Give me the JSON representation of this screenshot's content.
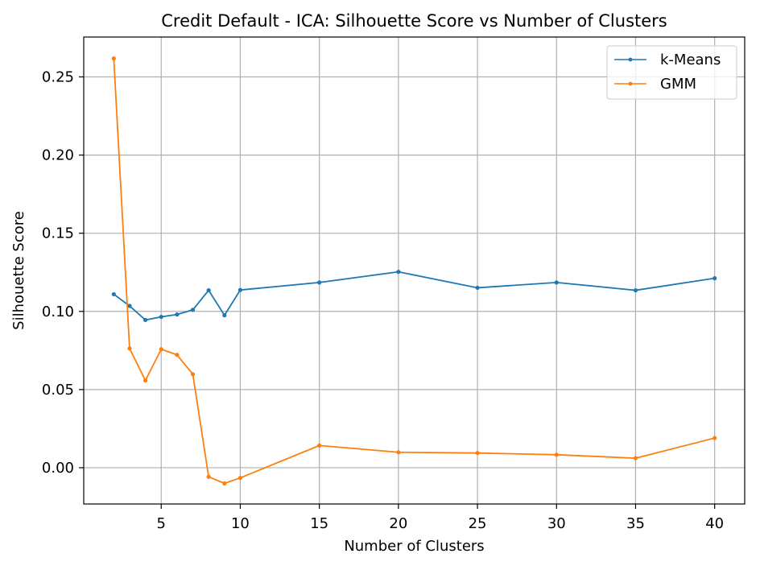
{
  "chart_data": {
    "type": "line",
    "title": "Credit Default - ICA: Silhouette Score vs Number of Clusters",
    "xlabel": "Number of Clusters",
    "ylabel": "Silhouette Score",
    "xlim": [
      0.1,
      41.9
    ],
    "ylim": [
      -0.0232,
      0.2755
    ],
    "x_ticks": [
      5,
      10,
      15,
      20,
      25,
      30,
      35,
      40
    ],
    "y_ticks": [
      0.0,
      0.05,
      0.1,
      0.15,
      0.2,
      0.25
    ],
    "x_tick_labels": [
      "5",
      "10",
      "15",
      "20",
      "25",
      "30",
      "35",
      "40"
    ],
    "y_tick_labels": [
      "0.00",
      "0.05",
      "0.10",
      "0.15",
      "0.20",
      "0.25"
    ],
    "grid": true,
    "legend_position": "top-right",
    "x": [
      2,
      3,
      4,
      5,
      6,
      7,
      8,
      9,
      10,
      15,
      20,
      25,
      30,
      35,
      40
    ],
    "series": [
      {
        "name": "k-Means",
        "color": "#1f77b4",
        "values": [
          0.111,
          0.1035,
          0.0945,
          0.0965,
          0.098,
          0.101,
          0.1135,
          0.0975,
          0.1137,
          0.1185,
          0.1253,
          0.1151,
          0.1185,
          0.1135,
          0.1212
        ]
      },
      {
        "name": "GMM",
        "color": "#ff7f0e",
        "values": [
          0.2618,
          0.0763,
          0.0558,
          0.0758,
          0.0722,
          0.0598,
          -0.0058,
          -0.01,
          -0.0065,
          0.0142,
          0.0099,
          0.0094,
          0.0083,
          0.0061,
          0.019
        ]
      }
    ]
  }
}
